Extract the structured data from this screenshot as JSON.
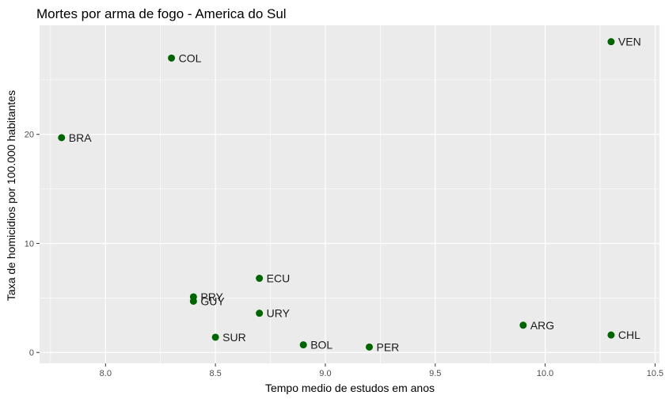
{
  "chart_data": {
    "type": "scatter",
    "title": "Mortes por arma de fogo - America do Sul",
    "xlabel": "Tempo medio de estudos em anos",
    "ylabel": "Taxa de homicidios por 100.000 habitantes",
    "xlim": [
      7.7,
      10.52
    ],
    "ylim": [
      -1.0,
      30.0
    ],
    "x_ticks": [
      8.0,
      8.5,
      9.0,
      9.5,
      10.0,
      10.5
    ],
    "x_tick_labels": [
      "8.0",
      "8.5",
      "9.0",
      "9.5",
      "10.0",
      "10.5"
    ],
    "y_ticks": [
      0,
      10,
      20
    ],
    "y_tick_labels": [
      "0",
      "10",
      "20"
    ],
    "grid": true,
    "panel_color": "#ebebeb",
    "point_color": "#006400",
    "points": [
      {
        "label": "VEN",
        "x": 10.3,
        "y": 28.5
      },
      {
        "label": "COL",
        "x": 8.3,
        "y": 27.0
      },
      {
        "label": "BRA",
        "x": 7.8,
        "y": 19.7
      },
      {
        "label": "ECU",
        "x": 8.7,
        "y": 6.8
      },
      {
        "label": "PRY",
        "x": 8.4,
        "y": 5.1
      },
      {
        "label": "GUY",
        "x": 8.4,
        "y": 4.7
      },
      {
        "label": "URY",
        "x": 8.7,
        "y": 3.6
      },
      {
        "label": "ARG",
        "x": 9.9,
        "y": 2.5
      },
      {
        "label": "CHL",
        "x": 10.3,
        "y": 1.6
      },
      {
        "label": "SUR",
        "x": 8.5,
        "y": 1.4
      },
      {
        "label": "BOL",
        "x": 8.9,
        "y": 0.7
      },
      {
        "label": "PER",
        "x": 9.2,
        "y": 0.5
      }
    ]
  }
}
